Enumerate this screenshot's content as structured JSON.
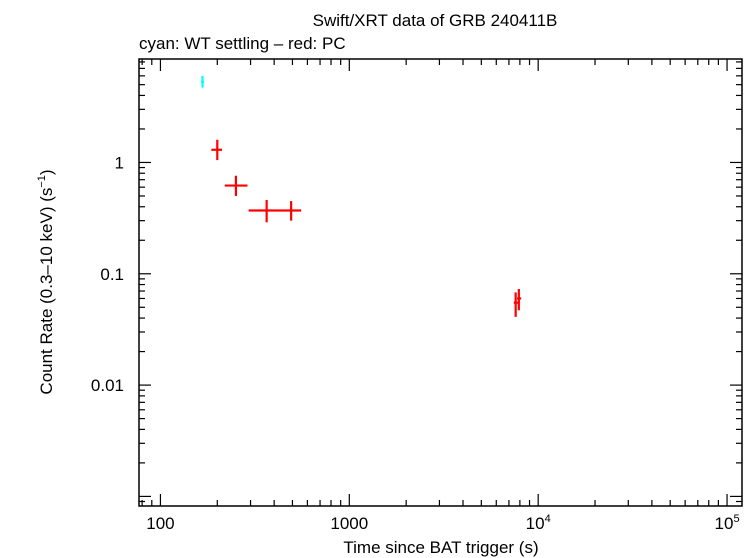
{
  "chart_data": {
    "type": "scatter",
    "title": "Swift/XRT data of GRB 240411B",
    "subtitle": "cyan: WT settling – red: PC",
    "xlabel": "Time since BAT trigger (s)",
    "ylabel_main": "Count Rate (0.3–10 keV) (s",
    "ylabel_sup": "−1",
    "ylabel_close": ")",
    "x_scale": "log",
    "y_scale": "log",
    "xlim": [
      77,
      120000
    ],
    "ylim": [
      0.00082,
      8.5
    ],
    "x_ticks": [
      {
        "value": 100,
        "base": "100",
        "exp": ""
      },
      {
        "value": 1000,
        "base": "1000",
        "exp": ""
      },
      {
        "value": 10000,
        "base": "10",
        "exp": "4"
      },
      {
        "value": 100000,
        "base": "10",
        "exp": "5"
      }
    ],
    "y_ticks": [
      {
        "value": 1,
        "label": "1"
      },
      {
        "value": 0.1,
        "label": "0.1"
      },
      {
        "value": 0.01,
        "label": "0.01"
      }
    ],
    "colors": {
      "wt": "#00ffff",
      "pc": "#ff0000",
      "axis": "#000000"
    },
    "series": [
      {
        "color": "#00ffff",
        "points": [
          {
            "x": 167,
            "y": 5.3,
            "xerr": [
              3,
              3
            ],
            "yerr": [
              0.6,
              0.7
            ]
          }
        ]
      },
      {
        "color": "#ff0000",
        "points": [
          {
            "x": 200,
            "y": 1.3,
            "xerr": [
              14,
              12
            ],
            "yerr": [
              0.25,
              0.3
            ]
          },
          {
            "x": 251,
            "y": 0.62,
            "xerr": [
              32,
              38
            ],
            "yerr": [
              0.12,
              0.14
            ]
          },
          {
            "x": 365,
            "y": 0.37,
            "xerr": [
              72,
              70
            ],
            "yerr": [
              0.08,
              0.09
            ]
          },
          {
            "x": 492,
            "y": 0.37,
            "xerr": [
              57,
              64
            ],
            "yerr": [
              0.07,
              0.08
            ]
          },
          {
            "x": 7600,
            "y": 0.055,
            "xerr": [
              170,
              210
            ],
            "yerr": [
              0.014,
              0.013
            ]
          },
          {
            "x": 7900,
            "y": 0.06,
            "xerr": [
              170,
              230
            ],
            "yerr": [
              0.013,
              0.013
            ]
          }
        ]
      }
    ]
  }
}
